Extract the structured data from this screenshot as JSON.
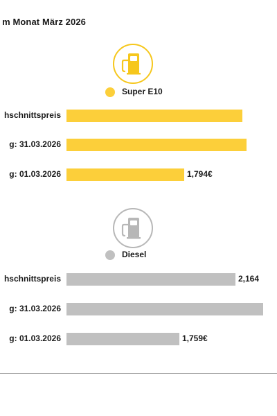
{
  "header": {
    "title": "m Monat März 2026"
  },
  "colors": {
    "super_e10": "#fccf3a",
    "diesel": "#c0c0c0",
    "icon_super": "#f6c71c",
    "icon_diesel": "#b7b7b7"
  },
  "chart_data": [
    {
      "type": "bar",
      "orientation": "horizontal",
      "series": [
        {
          "name": "Super E10"
        }
      ],
      "categories": [
        "hschnittspreis",
        "g: 31.03.2026",
        "g: 01.03.2026"
      ],
      "values": [
        2.21,
        2.24,
        1.794
      ],
      "value_labels": [
        "",
        "",
        "1,794€"
      ],
      "icon": "fuel-pump-icon"
    },
    {
      "type": "bar",
      "orientation": "horizontal",
      "series": [
        {
          "name": "Diesel"
        }
      ],
      "categories": [
        "hschnittspreis",
        "g: 31.03.2026",
        "g: 01.03.2026"
      ],
      "values": [
        2.164,
        2.36,
        1.759
      ],
      "value_labels": [
        "2,164",
        "",
        "1,759€"
      ],
      "icon": "fuel-pump-icon"
    }
  ]
}
